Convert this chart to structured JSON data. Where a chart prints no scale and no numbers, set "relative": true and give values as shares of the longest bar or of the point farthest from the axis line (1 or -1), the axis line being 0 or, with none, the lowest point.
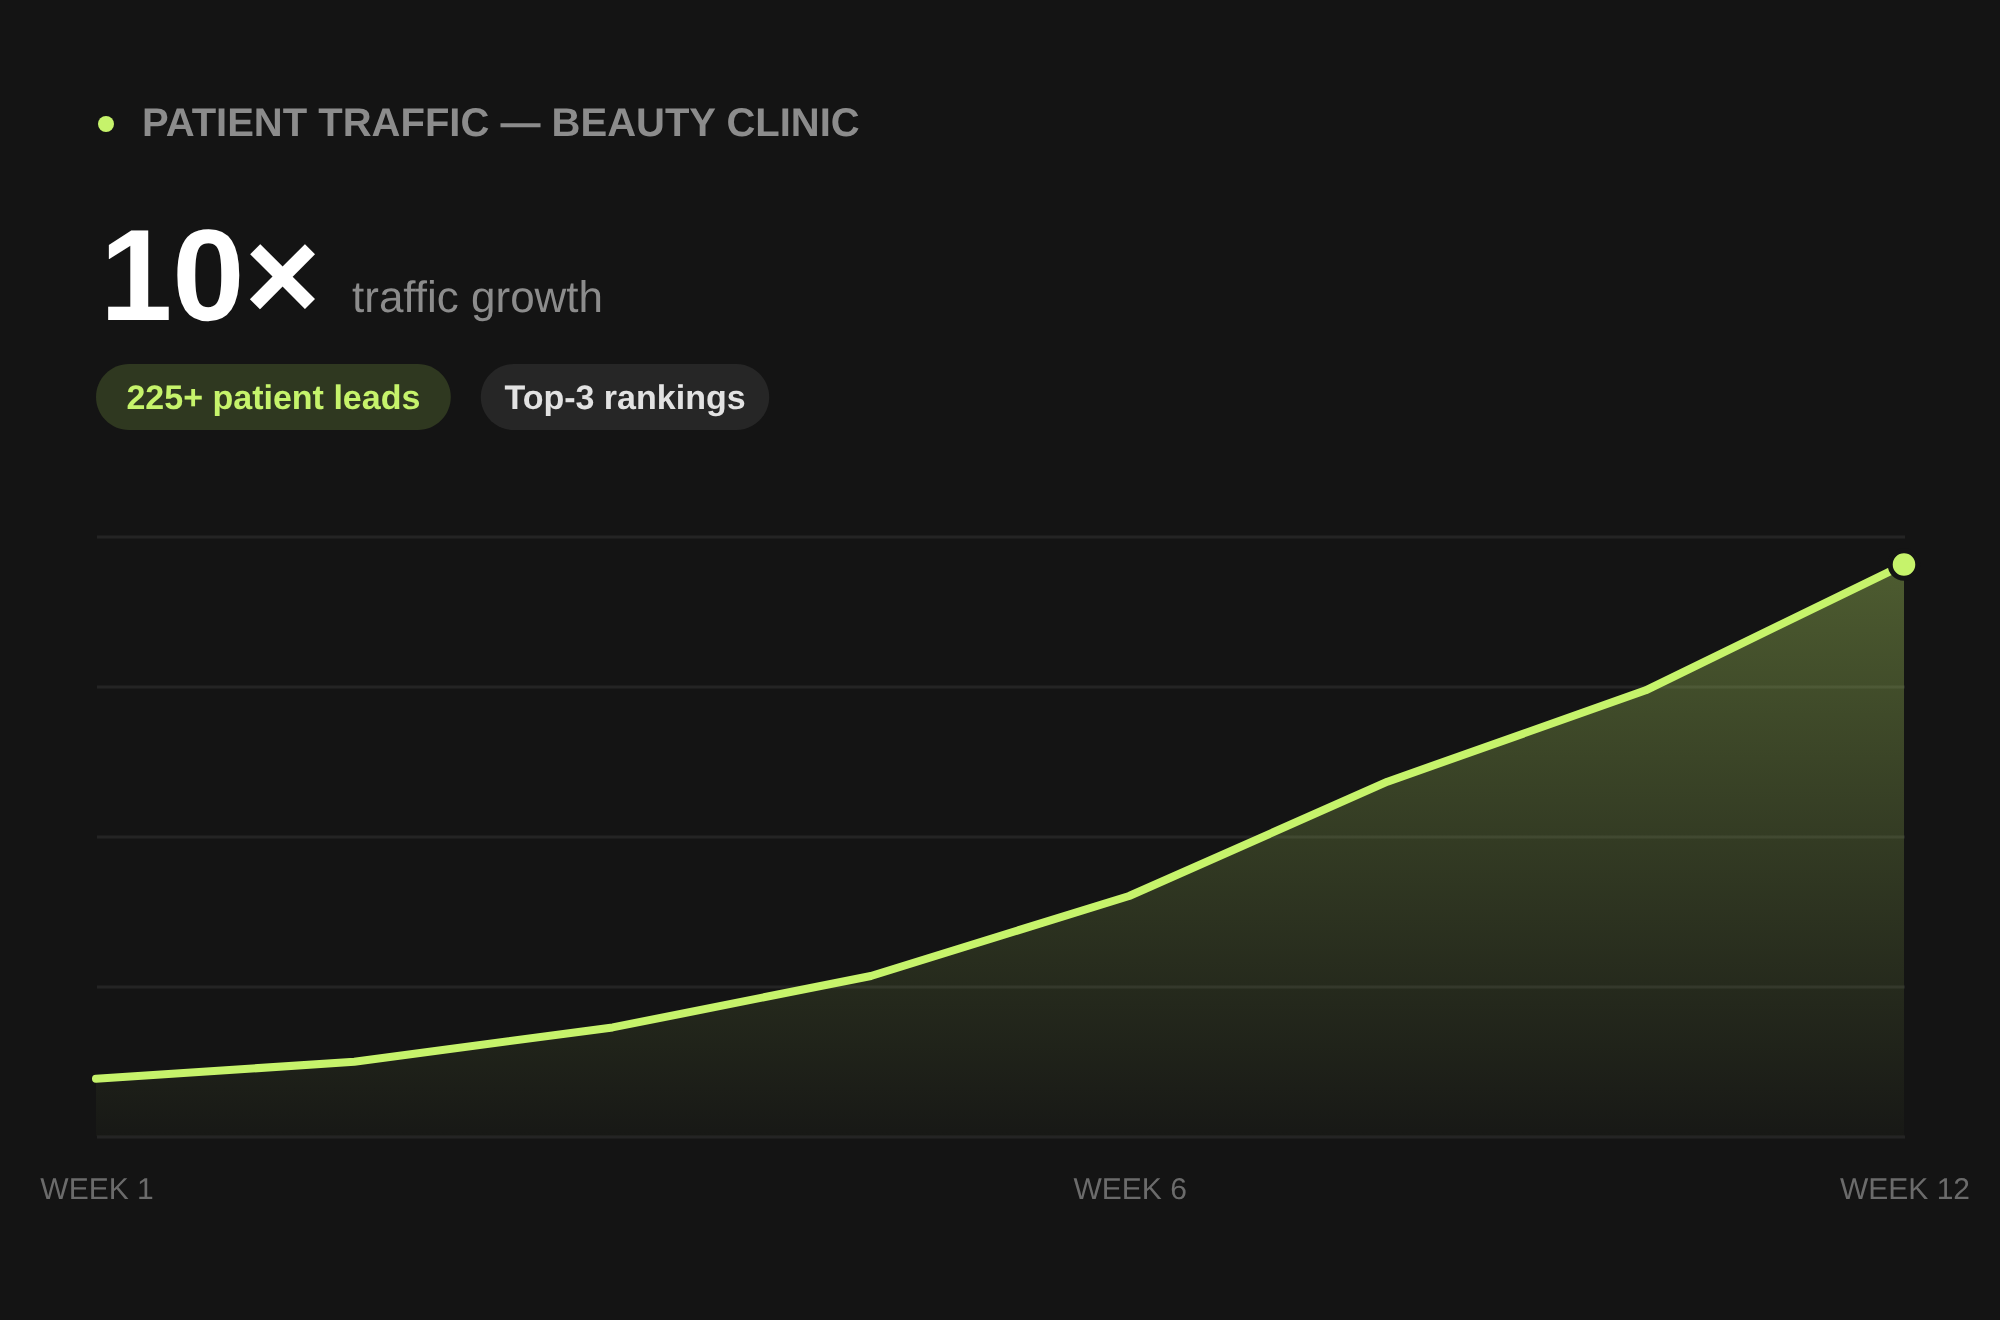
{
  "chart_data": {
    "type": "area",
    "annotations": [
      "10×",
      "traffic growth",
      "225+ patient leads",
      "Top-3 rankings"
    ],
    "categories": [
      "WEEK 1",
      null,
      null,
      null,
      "WEEK 6",
      null,
      null,
      "WEEK 12"
    ],
    "relative": true,
    "grid": "y",
    "legend": "top left",
    "series": [
      {
        "name": "PATIENT TRAFFIC — BEAUTY CLINIC",
        "color": "#c6f36b",
        "values": [
          0.1,
          0.13,
          0.19,
          0.28,
          0.42,
          0.62,
          0.78,
          1
        ]
      },
      {
        "type": "scatter",
        "color": "#c6f36b",
        "values": [
          null,
          null,
          null,
          null,
          null,
          null,
          null,
          1
        ]
      }
    ]
  }
}
